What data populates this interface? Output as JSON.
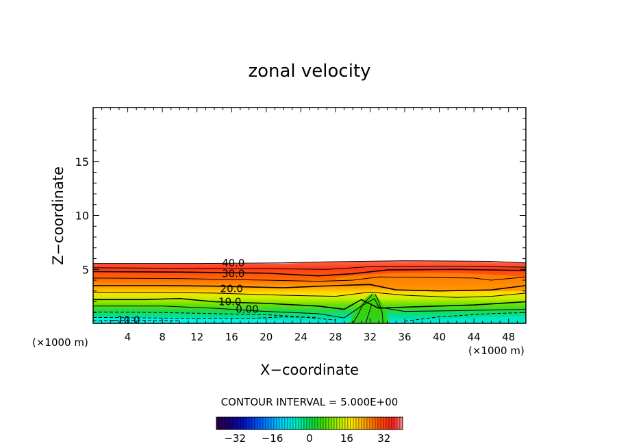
{
  "chart_data": {
    "type": "heatmap",
    "title": "zonal velocity",
    "xlabel": "X−coordinate",
    "ylabel": "Z−coordinate",
    "x_unit_left": "(×1000 m)",
    "x_unit_right": "(×1000 m)",
    "xlim": [
      0,
      50
    ],
    "ylim": [
      0,
      20
    ],
    "x_ticks": [
      4,
      8,
      12,
      16,
      20,
      24,
      28,
      32,
      36,
      40,
      44,
      48
    ],
    "x_tick_labels": [
      "4",
      "8",
      "12",
      "16",
      "20",
      "24",
      "28",
      "32",
      "36",
      "40",
      "44",
      "48"
    ],
    "y_ticks": [
      5,
      10,
      15
    ],
    "y_tick_labels": [
      "5",
      "10",
      "15"
    ],
    "contour_interval_text": "CONTOUR INTERVAL =  5.000E+00",
    "contour_labels": [
      {
        "text": "40.0",
        "x": 16.2,
        "z": 5.6
      },
      {
        "text": "30.0",
        "x": 16.2,
        "z": 4.6
      },
      {
        "text": "20.0",
        "x": 16.0,
        "z": 3.2
      },
      {
        "text": "10.0",
        "x": 15.8,
        "z": 2.0
      },
      {
        "text": "0.00",
        "x": 17.8,
        "z": 1.3
      },
      {
        "text": "−10.0",
        "x": 3.6,
        "z": 0.3
      }
    ],
    "colorbar": {
      "min": -40,
      "max": 40,
      "ticks": [
        -32,
        -16,
        0,
        16,
        32
      ],
      "tick_labels": [
        "−32",
        "−16",
        "0",
        "16",
        "32"
      ]
    },
    "grid": false,
    "legend": "colorbar-bottom"
  }
}
